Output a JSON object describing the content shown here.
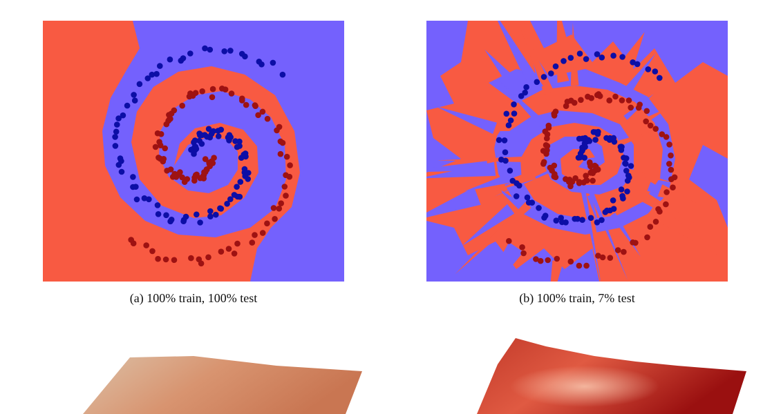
{
  "figure": {
    "panels": [
      {
        "caption": "(a) 100% train, 100% test",
        "colors": {
          "class_red_region": "#f85a42",
          "class_blue_region": "#7461fd",
          "red_points": "#9e1212",
          "blue_points": "#0c0ea6"
        }
      },
      {
        "caption": "(b) 100% train, 7% test",
        "colors": {
          "class_red_region": "#f85a42",
          "class_blue_region": "#7461fd",
          "red_points": "#9e1212",
          "blue_points": "#0c0ea6"
        }
      }
    ],
    "surfaces": [
      {
        "colors": {
          "light": "#dcc0a6",
          "mid": "#d89470",
          "dark": "#c97652"
        }
      },
      {
        "colors": {
          "light": "#f0a08a",
          "mid": "#d03a2a",
          "dark": "#9a1010"
        }
      }
    ]
  }
}
